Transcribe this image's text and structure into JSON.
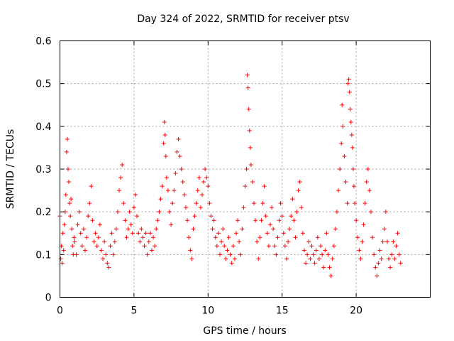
{
  "chart_data": {
    "type": "scatter",
    "title": "Day 324 of 2022, SRMTID for receiver ptsv",
    "xlabel": "GPS time / hours",
    "ylabel": "SRMTID / TECUs",
    "xlim": [
      0,
      25
    ],
    "ylim": [
      0,
      0.6
    ],
    "xticks": [
      0,
      5,
      10,
      15,
      20
    ],
    "yticks": [
      0,
      0.1,
      0.2,
      0.3,
      0.4,
      0.5,
      0.6
    ],
    "xtick_labels": [
      "0",
      "5",
      "10",
      "15",
      "20"
    ],
    "ytick_labels": [
      "0",
      "0.1",
      "0.2",
      "0.3",
      "0.4",
      "0.5",
      "0.6"
    ],
    "grid": true,
    "marker": "plus",
    "color": "#ff0000",
    "series": [
      {
        "name": "SRMTID",
        "points": [
          [
            0.0,
            0.19
          ],
          [
            0.05,
            0.09
          ],
          [
            0.1,
            0.12
          ],
          [
            0.15,
            0.08
          ],
          [
            0.2,
            0.15
          ],
          [
            0.25,
            0.11
          ],
          [
            0.3,
            0.17
          ],
          [
            0.35,
            0.2
          ],
          [
            0.4,
            0.24
          ],
          [
            0.45,
            0.34
          ],
          [
            0.5,
            0.37
          ],
          [
            0.55,
            0.3
          ],
          [
            0.6,
            0.27
          ],
          [
            0.65,
            0.22
          ],
          [
            0.7,
            0.19
          ],
          [
            0.75,
            0.23
          ],
          [
            0.8,
            0.16
          ],
          [
            0.85,
            0.12
          ],
          [
            0.9,
            0.1
          ],
          [
            0.95,
            0.14
          ],
          [
            1.0,
            0.13
          ],
          [
            1.1,
            0.1
          ],
          [
            1.2,
            0.17
          ],
          [
            1.3,
            0.2
          ],
          [
            1.4,
            0.15
          ],
          [
            1.5,
            0.12
          ],
          [
            1.6,
            0.16
          ],
          [
            1.7,
            0.11
          ],
          [
            1.8,
            0.14
          ],
          [
            1.9,
            0.19
          ],
          [
            2.0,
            0.22
          ],
          [
            2.1,
            0.26
          ],
          [
            2.2,
            0.18
          ],
          [
            2.3,
            0.13
          ],
          [
            2.4,
            0.15
          ],
          [
            2.5,
            0.12
          ],
          [
            2.6,
            0.14
          ],
          [
            2.7,
            0.17
          ],
          [
            2.8,
            0.11
          ],
          [
            2.9,
            0.09
          ],
          [
            3.0,
            0.13
          ],
          [
            3.1,
            0.1
          ],
          [
            3.2,
            0.08
          ],
          [
            3.3,
            0.07
          ],
          [
            3.4,
            0.12
          ],
          [
            3.5,
            0.15
          ],
          [
            3.6,
            0.1
          ],
          [
            3.7,
            0.13
          ],
          [
            3.8,
            0.16
          ],
          [
            3.9,
            0.2
          ],
          [
            4.0,
            0.25
          ],
          [
            4.1,
            0.28
          ],
          [
            4.2,
            0.31
          ],
          [
            4.3,
            0.22
          ],
          [
            4.4,
            0.18
          ],
          [
            4.5,
            0.14
          ],
          [
            4.6,
            0.16
          ],
          [
            4.7,
            0.2
          ],
          [
            4.8,
            0.17
          ],
          [
            4.9,
            0.15
          ],
          [
            5.0,
            0.21
          ],
          [
            5.1,
            0.24
          ],
          [
            5.2,
            0.19
          ],
          [
            5.3,
            0.15
          ],
          [
            5.4,
            0.13
          ],
          [
            5.5,
            0.16
          ],
          [
            5.6,
            0.14
          ],
          [
            5.7,
            0.12
          ],
          [
            5.8,
            0.15
          ],
          [
            5.9,
            0.1
          ],
          [
            6.0,
            0.13
          ],
          [
            6.1,
            0.15
          ],
          [
            6.2,
            0.11
          ],
          [
            6.3,
            0.14
          ],
          [
            6.4,
            0.12
          ],
          [
            6.5,
            0.16
          ],
          [
            6.6,
            0.18
          ],
          [
            6.7,
            0.2
          ],
          [
            6.8,
            0.23
          ],
          [
            6.9,
            0.26
          ],
          [
            7.0,
            0.36
          ],
          [
            7.05,
            0.41
          ],
          [
            7.1,
            0.38
          ],
          [
            7.15,
            0.33
          ],
          [
            7.2,
            0.28
          ],
          [
            7.3,
            0.25
          ],
          [
            7.4,
            0.2
          ],
          [
            7.5,
            0.17
          ],
          [
            7.6,
            0.22
          ],
          [
            7.7,
            0.25
          ],
          [
            7.8,
            0.29
          ],
          [
            7.9,
            0.34
          ],
          [
            8.0,
            0.37
          ],
          [
            8.1,
            0.33
          ],
          [
            8.2,
            0.3
          ],
          [
            8.3,
            0.27
          ],
          [
            8.4,
            0.24
          ],
          [
            8.5,
            0.21
          ],
          [
            8.6,
            0.18
          ],
          [
            8.7,
            0.14
          ],
          [
            8.8,
            0.11
          ],
          [
            8.9,
            0.09
          ],
          [
            9.0,
            0.16
          ],
          [
            9.1,
            0.19
          ],
          [
            9.2,
            0.22
          ],
          [
            9.3,
            0.25
          ],
          [
            9.4,
            0.28
          ],
          [
            9.5,
            0.21
          ],
          [
            9.6,
            0.24
          ],
          [
            9.7,
            0.27
          ],
          [
            9.8,
            0.3
          ],
          [
            9.9,
            0.28
          ],
          [
            10.0,
            0.26
          ],
          [
            10.1,
            0.22
          ],
          [
            10.2,
            0.19
          ],
          [
            10.3,
            0.16
          ],
          [
            10.4,
            0.18
          ],
          [
            10.5,
            0.14
          ],
          [
            10.6,
            0.12
          ],
          [
            10.7,
            0.15
          ],
          [
            10.8,
            0.1
          ],
          [
            10.9,
            0.13
          ],
          [
            11.0,
            0.16
          ],
          [
            11.1,
            0.12
          ],
          [
            11.2,
            0.09
          ],
          [
            11.3,
            0.11
          ],
          [
            11.4,
            0.14
          ],
          [
            11.5,
            0.1
          ],
          [
            11.6,
            0.08
          ],
          [
            11.7,
            0.12
          ],
          [
            11.8,
            0.09
          ],
          [
            11.9,
            0.15
          ],
          [
            12.0,
            0.18
          ],
          [
            12.1,
            0.13
          ],
          [
            12.2,
            0.1
          ],
          [
            12.3,
            0.16
          ],
          [
            12.4,
            0.21
          ],
          [
            12.5,
            0.26
          ],
          [
            12.6,
            0.3
          ],
          [
            12.65,
            0.52
          ],
          [
            12.7,
            0.49
          ],
          [
            12.75,
            0.44
          ],
          [
            12.8,
            0.39
          ],
          [
            12.85,
            0.35
          ],
          [
            12.9,
            0.31
          ],
          [
            13.0,
            0.27
          ],
          [
            13.1,
            0.22
          ],
          [
            13.2,
            0.18
          ],
          [
            13.3,
            0.13
          ],
          [
            13.4,
            0.09
          ],
          [
            13.5,
            0.14
          ],
          [
            13.6,
            0.18
          ],
          [
            13.7,
            0.22
          ],
          [
            13.8,
            0.26
          ],
          [
            13.9,
            0.19
          ],
          [
            14.0,
            0.15
          ],
          [
            14.1,
            0.12
          ],
          [
            14.2,
            0.17
          ],
          [
            14.3,
            0.21
          ],
          [
            14.4,
            0.16
          ],
          [
            14.5,
            0.12
          ],
          [
            14.6,
            0.1
          ],
          [
            14.7,
            0.14
          ],
          [
            14.8,
            0.18
          ],
          [
            14.9,
            0.22
          ],
          [
            15.0,
            0.19
          ],
          [
            15.1,
            0.15
          ],
          [
            15.2,
            0.12
          ],
          [
            15.3,
            0.09
          ],
          [
            15.4,
            0.13
          ],
          [
            15.5,
            0.16
          ],
          [
            15.6,
            0.19
          ],
          [
            15.7,
            0.23
          ],
          [
            15.8,
            0.18
          ],
          [
            15.9,
            0.14
          ],
          [
            16.0,
            0.2
          ],
          [
            16.1,
            0.25
          ],
          [
            16.2,
            0.27
          ],
          [
            16.3,
            0.21
          ],
          [
            16.4,
            0.15
          ],
          [
            16.5,
            0.11
          ],
          [
            16.6,
            0.08
          ],
          [
            16.7,
            0.1
          ],
          [
            16.8,
            0.13
          ],
          [
            16.9,
            0.09
          ],
          [
            17.0,
            0.12
          ],
          [
            17.1,
            0.1
          ],
          [
            17.2,
            0.08
          ],
          [
            17.3,
            0.11
          ],
          [
            17.4,
            0.14
          ],
          [
            17.5,
            0.09
          ],
          [
            17.6,
            0.12
          ],
          [
            17.7,
            0.1
          ],
          [
            17.8,
            0.07
          ],
          [
            17.9,
            0.11
          ],
          [
            18.0,
            0.15
          ],
          [
            18.1,
            0.1
          ],
          [
            18.2,
            0.07
          ],
          [
            18.3,
            0.05
          ],
          [
            18.4,
            0.09
          ],
          [
            18.5,
            0.12
          ],
          [
            18.6,
            0.16
          ],
          [
            18.7,
            0.2
          ],
          [
            18.8,
            0.25
          ],
          [
            18.9,
            0.3
          ],
          [
            19.0,
            0.36
          ],
          [
            19.05,
            0.45
          ],
          [
            19.1,
            0.4
          ],
          [
            19.2,
            0.33
          ],
          [
            19.3,
            0.27
          ],
          [
            19.4,
            0.22
          ],
          [
            19.45,
            0.5
          ],
          [
            19.5,
            0.51
          ],
          [
            19.55,
            0.48
          ],
          [
            19.6,
            0.44
          ],
          [
            19.65,
            0.41
          ],
          [
            19.7,
            0.38
          ],
          [
            19.75,
            0.35
          ],
          [
            19.8,
            0.3
          ],
          [
            19.85,
            0.26
          ],
          [
            19.9,
            0.22
          ],
          [
            20.0,
            0.18
          ],
          [
            20.1,
            0.14
          ],
          [
            20.2,
            0.11
          ],
          [
            20.3,
            0.09
          ],
          [
            20.4,
            0.13
          ],
          [
            20.5,
            0.17
          ],
          [
            20.6,
            0.22
          ],
          [
            20.7,
            0.27
          ],
          [
            20.8,
            0.3
          ],
          [
            20.9,
            0.25
          ],
          [
            21.0,
            0.2
          ],
          [
            21.1,
            0.14
          ],
          [
            21.2,
            0.1
          ],
          [
            21.3,
            0.07
          ],
          [
            21.4,
            0.05
          ],
          [
            21.5,
            0.08
          ],
          [
            21.6,
            0.11
          ],
          [
            21.7,
            0.09
          ],
          [
            21.8,
            0.13
          ],
          [
            21.9,
            0.16
          ],
          [
            22.0,
            0.2
          ],
          [
            22.1,
            0.13
          ],
          [
            22.2,
            0.09
          ],
          [
            22.3,
            0.07
          ],
          [
            22.4,
            0.1
          ],
          [
            22.5,
            0.13
          ],
          [
            22.6,
            0.09
          ],
          [
            22.7,
            0.12
          ],
          [
            22.8,
            0.15
          ],
          [
            22.9,
            0.1
          ],
          [
            23.0,
            0.08
          ]
        ]
      }
    ]
  }
}
